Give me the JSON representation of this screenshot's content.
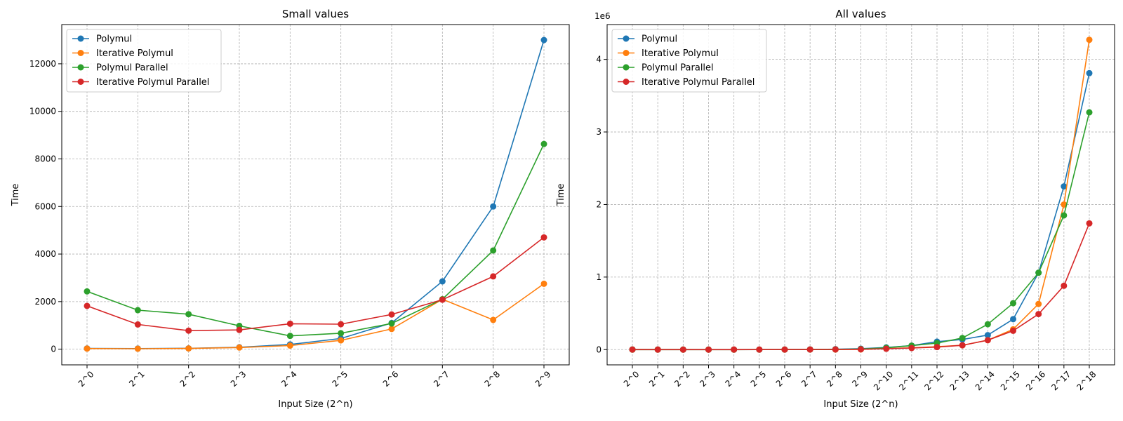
{
  "chart_data": [
    {
      "type": "line",
      "title": "Small values",
      "xlabel": "Input Size (2^n)",
      "ylabel": "Time",
      "categories": [
        "2^0",
        "2^1",
        "2^2",
        "2^3",
        "2^4",
        "2^5",
        "2^6",
        "2^7",
        "2^8",
        "2^9"
      ],
      "ylim": [
        -660,
        13650
      ],
      "yticks": [
        0,
        2000,
        4000,
        6000,
        8000,
        10000,
        12000
      ],
      "y_offset_label": "",
      "grid": true,
      "legend_position": "top-left",
      "series": [
        {
          "name": "Polymul",
          "color": "#1f77b4",
          "values": [
            30,
            25,
            35,
            80,
            200,
            450,
            1100,
            2850,
            6000,
            13000
          ]
        },
        {
          "name": "Iterative Polymul",
          "color": "#ff7f0e",
          "values": [
            25,
            20,
            30,
            70,
            150,
            370,
            850,
            2100,
            1230,
            2750
          ]
        },
        {
          "name": "Polymul Parallel",
          "color": "#2ca02c",
          "values": [
            2430,
            1640,
            1470,
            980,
            560,
            670,
            1080,
            2100,
            4150,
            8630
          ]
        },
        {
          "name": "Iterative Polymul Parallel",
          "color": "#d62728",
          "values": [
            1820,
            1040,
            780,
            810,
            1070,
            1050,
            1460,
            2080,
            3060,
            4700
          ]
        }
      ]
    },
    {
      "type": "line",
      "title": "All values",
      "xlabel": "Input Size (2^n)",
      "ylabel": "Time",
      "categories": [
        "2^0",
        "2^1",
        "2^2",
        "2^3",
        "2^4",
        "2^5",
        "2^6",
        "2^7",
        "2^8",
        "2^9",
        "2^10",
        "2^11",
        "2^12",
        "2^13",
        "2^14",
        "2^15",
        "2^16",
        "2^17",
        "2^18"
      ],
      "ylim": [
        -210000,
        4480000
      ],
      "yticks": [
        0,
        1000000,
        2000000,
        3000000,
        4000000
      ],
      "ytick_labels": [
        "0",
        "1",
        "2",
        "3",
        "4"
      ],
      "y_offset_label": "1e6",
      "grid": true,
      "legend_position": "top-left",
      "series": [
        {
          "name": "Polymul",
          "color": "#1f77b4",
          "values": [
            30,
            25,
            35,
            80,
            200,
            450,
            1100,
            2850,
            6000,
            13000,
            30000,
            55000,
            110000,
            140000,
            200000,
            420000,
            1060000,
            2250000,
            3810000
          ]
        },
        {
          "name": "Iterative Polymul",
          "color": "#ff7f0e",
          "values": [
            25,
            20,
            30,
            70,
            150,
            370,
            850,
            2100,
            1230,
            2750,
            15000,
            25000,
            40000,
            60000,
            130000,
            280000,
            630000,
            2000000,
            4270000
          ]
        },
        {
          "name": "Polymul Parallel",
          "color": "#2ca02c",
          "values": [
            2430,
            1640,
            1470,
            980,
            560,
            670,
            1080,
            2100,
            4150,
            8630,
            25000,
            55000,
            90000,
            160000,
            350000,
            640000,
            1060000,
            1850000,
            3270000
          ]
        },
        {
          "name": "Iterative Polymul Parallel",
          "color": "#d62728",
          "values": [
            1820,
            1040,
            780,
            810,
            1070,
            1050,
            1460,
            2080,
            3060,
            4700,
            12000,
            22000,
            35000,
            60000,
            130000,
            260000,
            490000,
            880000,
            1740000
          ]
        }
      ]
    }
  ]
}
